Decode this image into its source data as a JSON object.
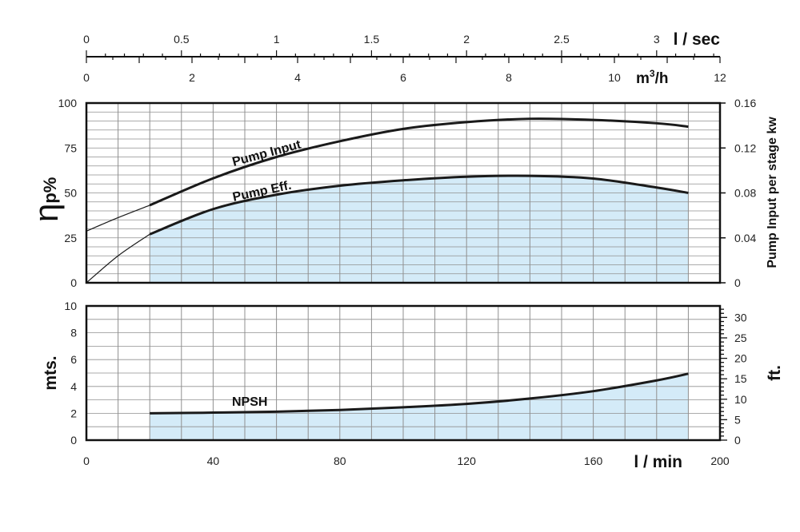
{
  "chart_data": [
    {
      "id": "efficiency",
      "type": "line",
      "xlabel": "l / min",
      "xlim": [
        0,
        200
      ],
      "ylabel": "ηp%",
      "ylim": [
        0,
        100
      ],
      "yticks": [
        0,
        25,
        50,
        75,
        100
      ],
      "ylabel_right": "Pump Input per stage kw",
      "ylim_right": [
        0,
        0.16
      ],
      "yticks_right": [
        "0",
        "0.04",
        "0.08",
        "0.12",
        "0.16"
      ],
      "grid": true,
      "series": [
        {
          "name": "Pump Input",
          "axis": "right",
          "filled": false,
          "x": [
            20,
            40,
            60,
            80,
            100,
            120,
            140,
            160,
            180,
            190
          ],
          "y": [
            0.069,
            0.093,
            0.112,
            0.126,
            0.137,
            0.143,
            0.146,
            0.145,
            0.142,
            0.139
          ],
          "extrapolated_x": [
            0,
            10,
            20
          ],
          "extrapolated_y": [
            0.046,
            0.058,
            0.069
          ]
        },
        {
          "name": "Pump Eff.",
          "axis": "left",
          "filled": true,
          "x": [
            20,
            40,
            60,
            80,
            100,
            120,
            140,
            160,
            180,
            190
          ],
          "y": [
            27,
            41,
            49,
            54,
            57,
            59,
            59.5,
            58,
            53,
            50
          ],
          "extrapolated_x": [
            0,
            10,
            20
          ],
          "extrapolated_y": [
            0,
            15,
            27
          ]
        }
      ]
    },
    {
      "id": "npsh",
      "type": "area",
      "xlabel": "l / min",
      "xlim": [
        0,
        200
      ],
      "xticks": [
        0,
        40,
        80,
        120,
        160,
        200
      ],
      "ylabel": "mts.",
      "ylim": [
        0,
        10
      ],
      "yticks": [
        0,
        2,
        4,
        6,
        8,
        10
      ],
      "ylabel_right": "ft.",
      "yticks_right": [
        0,
        5,
        10,
        15,
        20,
        25,
        30
      ],
      "grid": true,
      "series": [
        {
          "name": "NPSH",
          "x": [
            20,
            40,
            60,
            80,
            100,
            120,
            140,
            160,
            180,
            190
          ],
          "y": [
            2.0,
            2.05,
            2.12,
            2.25,
            2.45,
            2.7,
            3.1,
            3.65,
            4.45,
            4.95
          ]
        }
      ]
    }
  ],
  "top_axes": {
    "lsec": {
      "unit": "l / sec",
      "labels": [
        "0",
        "0.5",
        "1",
        "1.5",
        "2",
        "2.5",
        "3"
      ],
      "values": [
        0,
        0.5,
        1,
        1.5,
        2,
        2.5,
        3
      ],
      "range": [
        0,
        3.3333
      ]
    },
    "m3h": {
      "unit": "m",
      "unit_sup": "3",
      "unit_suffix": "/h",
      "labels": [
        "0",
        "2",
        "4",
        "6",
        "8",
        "10",
        "12"
      ],
      "values": [
        0,
        2,
        4,
        6,
        8,
        10,
        12
      ],
      "range": [
        0,
        12
      ]
    }
  },
  "colors": {
    "fill": "#d4ebf8",
    "curve": "#1a1a1a",
    "grid": "#8f8f8f",
    "frame": "#111111"
  }
}
